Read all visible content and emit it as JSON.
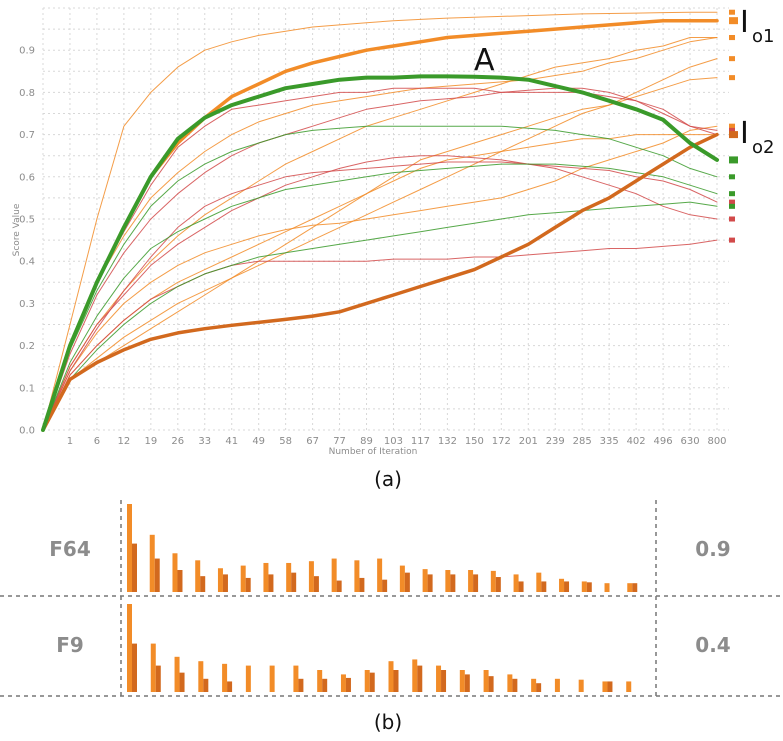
{
  "colors": {
    "orange": "#f28c28",
    "dark_orange": "#d2691e",
    "green": "#3a9a2a",
    "red": "#d24a4a",
    "grid": "#d8d8d8"
  },
  "panel_a": {
    "caption": "(a)",
    "annotation_A": "A",
    "annotation_o1": {
      "main": "I",
      "sub": "o1"
    },
    "annotation_o2": {
      "main": "I",
      "sub": "o2"
    }
  },
  "panel_b": {
    "caption": "(b)",
    "rows": [
      {
        "label": "F64",
        "value": "0.9"
      },
      {
        "label": "F9",
        "value": "0.4"
      }
    ]
  },
  "chart_data": [
    {
      "type": "line",
      "xlabel": "Number of Iteration",
      "ylabel": "Score Value",
      "x": [
        0,
        1,
        6,
        12,
        19,
        26,
        33,
        41,
        49,
        58,
        67,
        77,
        89,
        103,
        117,
        132,
        150,
        172,
        201,
        239,
        285,
        335,
        402,
        496,
        630,
        800
      ],
      "yticks": [
        0.0,
        0.1,
        0.2,
        0.3,
        0.4,
        0.5,
        0.6,
        0.7,
        0.8,
        0.9
      ],
      "ylim": [
        0,
        1.0
      ],
      "grid": true,
      "series": [
        {
          "color": "orange",
          "width": 3.5,
          "values": [
            0,
            0.2,
            0.35,
            0.48,
            0.6,
            0.68,
            0.74,
            0.79,
            0.82,
            0.85,
            0.87,
            0.885,
            0.9,
            0.91,
            0.92,
            0.93,
            0.935,
            0.94,
            0.945,
            0.95,
            0.955,
            0.96,
            0.965,
            0.97,
            0.97,
            0.97
          ]
        },
        {
          "color": "green",
          "width": 4,
          "values": [
            0,
            0.2,
            0.35,
            0.48,
            0.6,
            0.69,
            0.74,
            0.77,
            0.79,
            0.81,
            0.82,
            0.83,
            0.835,
            0.835,
            0.838,
            0.838,
            0.837,
            0.835,
            0.83,
            0.815,
            0.8,
            0.78,
            0.76,
            0.735,
            0.68,
            0.64
          ]
        },
        {
          "color": "dark_orange",
          "width": 3.5,
          "values": [
            0,
            0.12,
            0.16,
            0.19,
            0.215,
            0.23,
            0.24,
            0.248,
            0.255,
            0.262,
            0.27,
            0.28,
            0.3,
            0.32,
            0.34,
            0.36,
            0.38,
            0.41,
            0.44,
            0.48,
            0.52,
            0.55,
            0.59,
            0.63,
            0.67,
            0.7
          ]
        },
        {
          "color": "orange",
          "width": 1,
          "values": [
            0,
            0.25,
            0.5,
            0.72,
            0.8,
            0.86,
            0.9,
            0.92,
            0.935,
            0.945,
            0.955,
            0.96,
            0.965,
            0.97,
            0.973,
            0.976,
            0.978,
            0.98,
            0.982,
            0.984,
            0.986,
            0.987,
            0.988,
            0.989,
            0.99,
            0.99
          ]
        },
        {
          "color": "orange",
          "width": 1,
          "values": [
            0,
            0.15,
            0.25,
            0.33,
            0.4,
            0.46,
            0.51,
            0.55,
            0.59,
            0.63,
            0.66,
            0.69,
            0.72,
            0.74,
            0.76,
            0.78,
            0.8,
            0.82,
            0.84,
            0.86,
            0.87,
            0.88,
            0.9,
            0.91,
            0.93,
            0.93
          ]
        },
        {
          "color": "orange",
          "width": 1,
          "values": [
            0,
            0.12,
            0.17,
            0.22,
            0.26,
            0.3,
            0.33,
            0.36,
            0.39,
            0.42,
            0.45,
            0.48,
            0.51,
            0.54,
            0.57,
            0.6,
            0.63,
            0.66,
            0.69,
            0.72,
            0.75,
            0.77,
            0.8,
            0.83,
            0.86,
            0.88
          ]
        },
        {
          "color": "orange",
          "width": 1,
          "values": [
            0,
            0.12,
            0.16,
            0.2,
            0.24,
            0.28,
            0.32,
            0.36,
            0.4,
            0.44,
            0.48,
            0.52,
            0.56,
            0.6,
            0.64,
            0.66,
            0.68,
            0.7,
            0.72,
            0.74,
            0.76,
            0.77,
            0.79,
            0.81,
            0.83,
            0.835
          ]
        },
        {
          "color": "orange",
          "width": 1,
          "values": [
            0,
            0.2,
            0.35,
            0.46,
            0.55,
            0.61,
            0.66,
            0.7,
            0.73,
            0.75,
            0.77,
            0.78,
            0.79,
            0.8,
            0.81,
            0.815,
            0.82,
            0.825,
            0.83,
            0.84,
            0.85,
            0.87,
            0.88,
            0.9,
            0.92,
            0.93
          ]
        },
        {
          "color": "orange",
          "width": 1,
          "values": [
            0,
            0.14,
            0.23,
            0.3,
            0.35,
            0.39,
            0.42,
            0.44,
            0.46,
            0.475,
            0.485,
            0.49,
            0.5,
            0.51,
            0.52,
            0.53,
            0.54,
            0.55,
            0.57,
            0.59,
            0.62,
            0.64,
            0.66,
            0.68,
            0.71,
            0.72
          ]
        },
        {
          "color": "orange",
          "width": 1,
          "values": [
            0,
            0.13,
            0.2,
            0.26,
            0.31,
            0.35,
            0.38,
            0.41,
            0.44,
            0.47,
            0.5,
            0.53,
            0.56,
            0.59,
            0.62,
            0.64,
            0.65,
            0.66,
            0.67,
            0.68,
            0.69,
            0.69,
            0.7,
            0.7,
            0.7,
            0.7
          ]
        },
        {
          "color": "red",
          "width": 1,
          "values": [
            0,
            0.2,
            0.35,
            0.47,
            0.58,
            0.67,
            0.72,
            0.76,
            0.77,
            0.78,
            0.79,
            0.8,
            0.8,
            0.81,
            0.81,
            0.81,
            0.81,
            0.8,
            0.8,
            0.8,
            0.8,
            0.79,
            0.78,
            0.76,
            0.72,
            0.71
          ]
        },
        {
          "color": "red",
          "width": 1,
          "values": [
            0,
            0.18,
            0.32,
            0.42,
            0.5,
            0.56,
            0.61,
            0.65,
            0.68,
            0.7,
            0.72,
            0.74,
            0.76,
            0.77,
            0.78,
            0.785,
            0.79,
            0.8,
            0.805,
            0.81,
            0.81,
            0.8,
            0.78,
            0.75,
            0.72,
            0.7
          ]
        },
        {
          "color": "red",
          "width": 1,
          "values": [
            0,
            0.15,
            0.25,
            0.32,
            0.39,
            0.44,
            0.48,
            0.52,
            0.55,
            0.58,
            0.6,
            0.62,
            0.635,
            0.645,
            0.65,
            0.65,
            0.645,
            0.64,
            0.63,
            0.62,
            0.6,
            0.58,
            0.56,
            0.53,
            0.51,
            0.5
          ]
        },
        {
          "color": "red",
          "width": 1,
          "values": [
            0,
            0.13,
            0.2,
            0.26,
            0.31,
            0.34,
            0.37,
            0.39,
            0.4,
            0.4,
            0.4,
            0.4,
            0.4,
            0.405,
            0.405,
            0.405,
            0.41,
            0.41,
            0.415,
            0.42,
            0.425,
            0.43,
            0.43,
            0.435,
            0.44,
            0.45
          ]
        },
        {
          "color": "red",
          "width": 1,
          "values": [
            0,
            0.14,
            0.24,
            0.33,
            0.41,
            0.48,
            0.53,
            0.56,
            0.58,
            0.6,
            0.61,
            0.615,
            0.62,
            0.625,
            0.63,
            0.635,
            0.635,
            0.635,
            0.63,
            0.625,
            0.62,
            0.615,
            0.6,
            0.59,
            0.57,
            0.54
          ]
        },
        {
          "color": "green",
          "width": 1,
          "values": [
            0,
            0.19,
            0.33,
            0.44,
            0.53,
            0.59,
            0.63,
            0.66,
            0.68,
            0.7,
            0.71,
            0.715,
            0.72,
            0.72,
            0.72,
            0.72,
            0.72,
            0.72,
            0.715,
            0.71,
            0.7,
            0.69,
            0.67,
            0.65,
            0.62,
            0.6
          ]
        },
        {
          "color": "green",
          "width": 1,
          "values": [
            0,
            0.16,
            0.27,
            0.36,
            0.43,
            0.47,
            0.5,
            0.53,
            0.55,
            0.57,
            0.58,
            0.59,
            0.6,
            0.61,
            0.615,
            0.62,
            0.625,
            0.63,
            0.63,
            0.63,
            0.625,
            0.62,
            0.61,
            0.6,
            0.58,
            0.56
          ]
        },
        {
          "color": "green",
          "width": 1,
          "values": [
            0,
            0.12,
            0.19,
            0.25,
            0.3,
            0.34,
            0.37,
            0.39,
            0.41,
            0.42,
            0.43,
            0.44,
            0.45,
            0.46,
            0.47,
            0.48,
            0.49,
            0.5,
            0.51,
            0.515,
            0.52,
            0.525,
            0.53,
            0.535,
            0.54,
            0.53
          ]
        }
      ]
    },
    {
      "type": "bar",
      "rows": [
        {
          "label": "F64",
          "value_label": "0.9",
          "bars": [
            [
              1.0,
              0.55
            ],
            [
              0.65,
              0.38
            ],
            [
              0.44,
              0.25
            ],
            [
              0.36,
              0.18
            ],
            [
              0.27,
              0.2
            ],
            [
              0.3,
              0.16
            ],
            [
              0.33,
              0.2
            ],
            [
              0.33,
              0.22
            ],
            [
              0.35,
              0.18
            ],
            [
              0.38,
              0.13
            ],
            [
              0.36,
              0.16
            ],
            [
              0.38,
              0.14
            ],
            [
              0.3,
              0.22
            ],
            [
              0.26,
              0.2
            ],
            [
              0.25,
              0.2
            ],
            [
              0.25,
              0.2
            ],
            [
              0.24,
              0.17
            ],
            [
              0.2,
              0.12
            ],
            [
              0.22,
              0.12
            ],
            [
              0.15,
              0.12
            ],
            [
              0.12,
              0.11
            ],
            [
              0.1,
              0.0
            ],
            [
              0.1,
              0.1
            ]
          ]
        },
        {
          "label": "F9",
          "value_label": "0.4",
          "bars": [
            [
              1.0,
              0.55
            ],
            [
              0.55,
              0.3
            ],
            [
              0.4,
              0.22
            ],
            [
              0.35,
              0.15
            ],
            [
              0.32,
              0.12
            ],
            [
              0.3,
              0.0
            ],
            [
              0.3,
              0.0
            ],
            [
              0.3,
              0.15
            ],
            [
              0.25,
              0.15
            ],
            [
              0.2,
              0.16
            ],
            [
              0.25,
              0.22
            ],
            [
              0.35,
              0.25
            ],
            [
              0.37,
              0.3
            ],
            [
              0.3,
              0.25
            ],
            [
              0.25,
              0.2
            ],
            [
              0.25,
              0.18
            ],
            [
              0.2,
              0.15
            ],
            [
              0.15,
              0.1
            ],
            [
              0.15,
              0.0
            ],
            [
              0.14,
              0.0
            ],
            [
              0.12,
              0.12
            ],
            [
              0.12,
              0.0
            ]
          ]
        }
      ]
    }
  ]
}
